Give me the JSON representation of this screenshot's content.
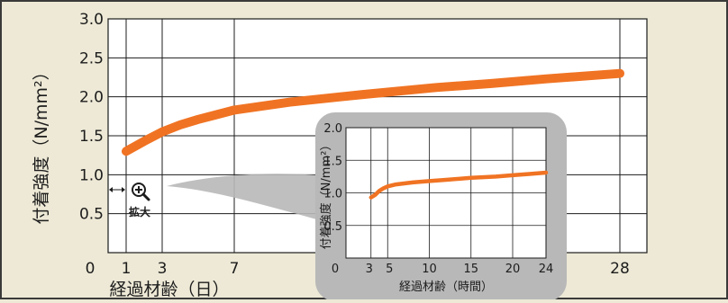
{
  "colors": {
    "background": "#ede9d6",
    "frame": "#3a3a3a",
    "plot_area": "#ffffff",
    "grid": "#1c1c1c",
    "series_line": "#f07323",
    "inset_panel": "#b8b8b8"
  },
  "zoom_marker": {
    "icon": "magnifier-plus-icon",
    "label": "拡大"
  },
  "chart_data": [
    {
      "id": "main",
      "type": "line",
      "xlabel": "経過材齢（日）",
      "ylabel": "付着強度（N/mm²）",
      "x_ticks": [
        0,
        1,
        3,
        7,
        28
      ],
      "y_ticks": [
        0.5,
        1.0,
        1.5,
        2.0,
        2.5,
        3.0
      ],
      "y_tick_labels": [
        "0.5",
        "1.0",
        "1.5",
        "2.0",
        "2.5",
        "3.0"
      ],
      "xlim": [
        0,
        28
      ],
      "ylim": [
        0,
        3.0
      ],
      "grid": true,
      "series": [
        {
          "x": [
            1,
            2,
            3,
            4,
            5,
            6,
            7,
            10,
            14,
            18,
            21,
            24,
            28
          ],
          "y": [
            1.3,
            1.43,
            1.55,
            1.64,
            1.71,
            1.77,
            1.83,
            1.93,
            2.03,
            2.12,
            2.17,
            2.23,
            2.3
          ]
        }
      ]
    },
    {
      "id": "inset",
      "type": "line",
      "xlabel": "経過材齢（時間）",
      "ylabel": "付着強度（N/mm²）",
      "x_ticks": [
        0,
        3,
        5,
        10,
        15,
        20,
        24
      ],
      "y_ticks": [
        0.5,
        1.0,
        1.5,
        2.0
      ],
      "y_tick_labels": [
        "0.5",
        "1.0",
        "1.5",
        "2.0"
      ],
      "xlim": [
        0,
        24
      ],
      "ylim": [
        0,
        2.0
      ],
      "grid": true,
      "series": [
        {
          "x": [
            3,
            3.5,
            4,
            4.5,
            5,
            6,
            8,
            10,
            12,
            15,
            18,
            20,
            22,
            24
          ],
          "y": [
            0.93,
            0.97,
            1.03,
            1.07,
            1.1,
            1.13,
            1.16,
            1.18,
            1.2,
            1.23,
            1.25,
            1.27,
            1.29,
            1.31
          ]
        }
      ]
    }
  ]
}
